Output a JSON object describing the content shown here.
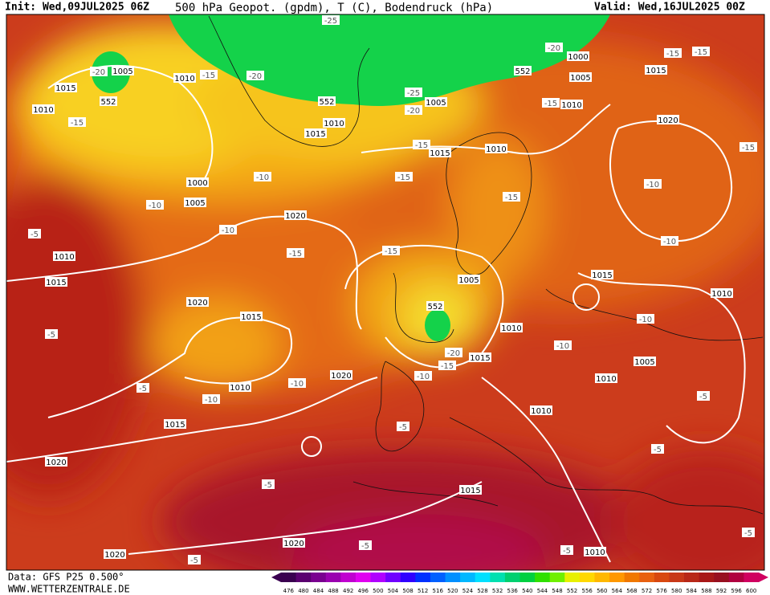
{
  "header": {
    "init": "Init: Wed,09JUL2025 06Z",
    "title": "500 hPa Geopot. (gpdm), T (C), Bodendruck (hPa)",
    "valid": "Valid: Wed,16JUL2025 00Z"
  },
  "footer": {
    "source": "Data: GFS P25 0.500°",
    "website": "WWW.WETTERZENTRALE.DE"
  },
  "isobar_labels": [
    "1015",
    "1005",
    "552",
    "1010",
    "1010",
    "1010",
    "1015",
    "1000",
    "1005",
    "1020",
    "1010",
    "1015",
    "1020",
    "1015",
    "1010",
    "1020",
    "1015",
    "1020",
    "1020",
    "1020",
    "552",
    "1005",
    "552",
    "1000",
    "1005",
    "1010",
    "1015",
    "1020",
    "1015",
    "1010",
    "1005",
    "552",
    "1010",
    "1015",
    "1015",
    "1010",
    "1005",
    "1010",
    "1010",
    "1015",
    "1010"
  ],
  "temperature_labels": [
    "-25",
    "-20",
    "-15",
    "-20",
    "-15",
    "-25",
    "-20",
    "-20",
    "-15",
    "-15",
    "-15",
    "-15",
    "-15",
    "-10",
    "-10",
    "-15",
    "-10",
    "-15",
    "-5",
    "-10",
    "-15",
    "-15",
    "-10",
    "-5",
    "-5",
    "-10",
    "-10",
    "-20",
    "-15",
    "-10",
    "-10",
    "-10",
    "-5",
    "-5",
    "-5",
    "-5",
    "-5",
    "-5",
    "-5",
    "-5"
  ],
  "colorbar": {
    "labels": [
      "476",
      "480",
      "484",
      "488",
      "492",
      "496",
      "500",
      "504",
      "508",
      "512",
      "516",
      "520",
      "524",
      "528",
      "532",
      "536",
      "540",
      "544",
      "548",
      "552",
      "556",
      "560",
      "564",
      "568",
      "572",
      "576",
      "580",
      "584",
      "588",
      "592",
      "596",
      "600"
    ],
    "colors": [
      "#3a0050",
      "#5a0070",
      "#7a0090",
      "#9a00b0",
      "#c000d0",
      "#e000f0",
      "#b000ff",
      "#7000ff",
      "#3000ff",
      "#0030ff",
      "#0060ff",
      "#0090ff",
      "#00b8ff",
      "#00e0ff",
      "#00e0b0",
      "#00d070",
      "#00d040",
      "#30e000",
      "#70f000",
      "#e8f000",
      "#ffd800",
      "#ffb800",
      "#ff9800",
      "#f07800",
      "#e86010",
      "#d84810",
      "#c83818",
      "#b82818",
      "#a81818",
      "#981020",
      "#b00040",
      "#d00060"
    ]
  }
}
